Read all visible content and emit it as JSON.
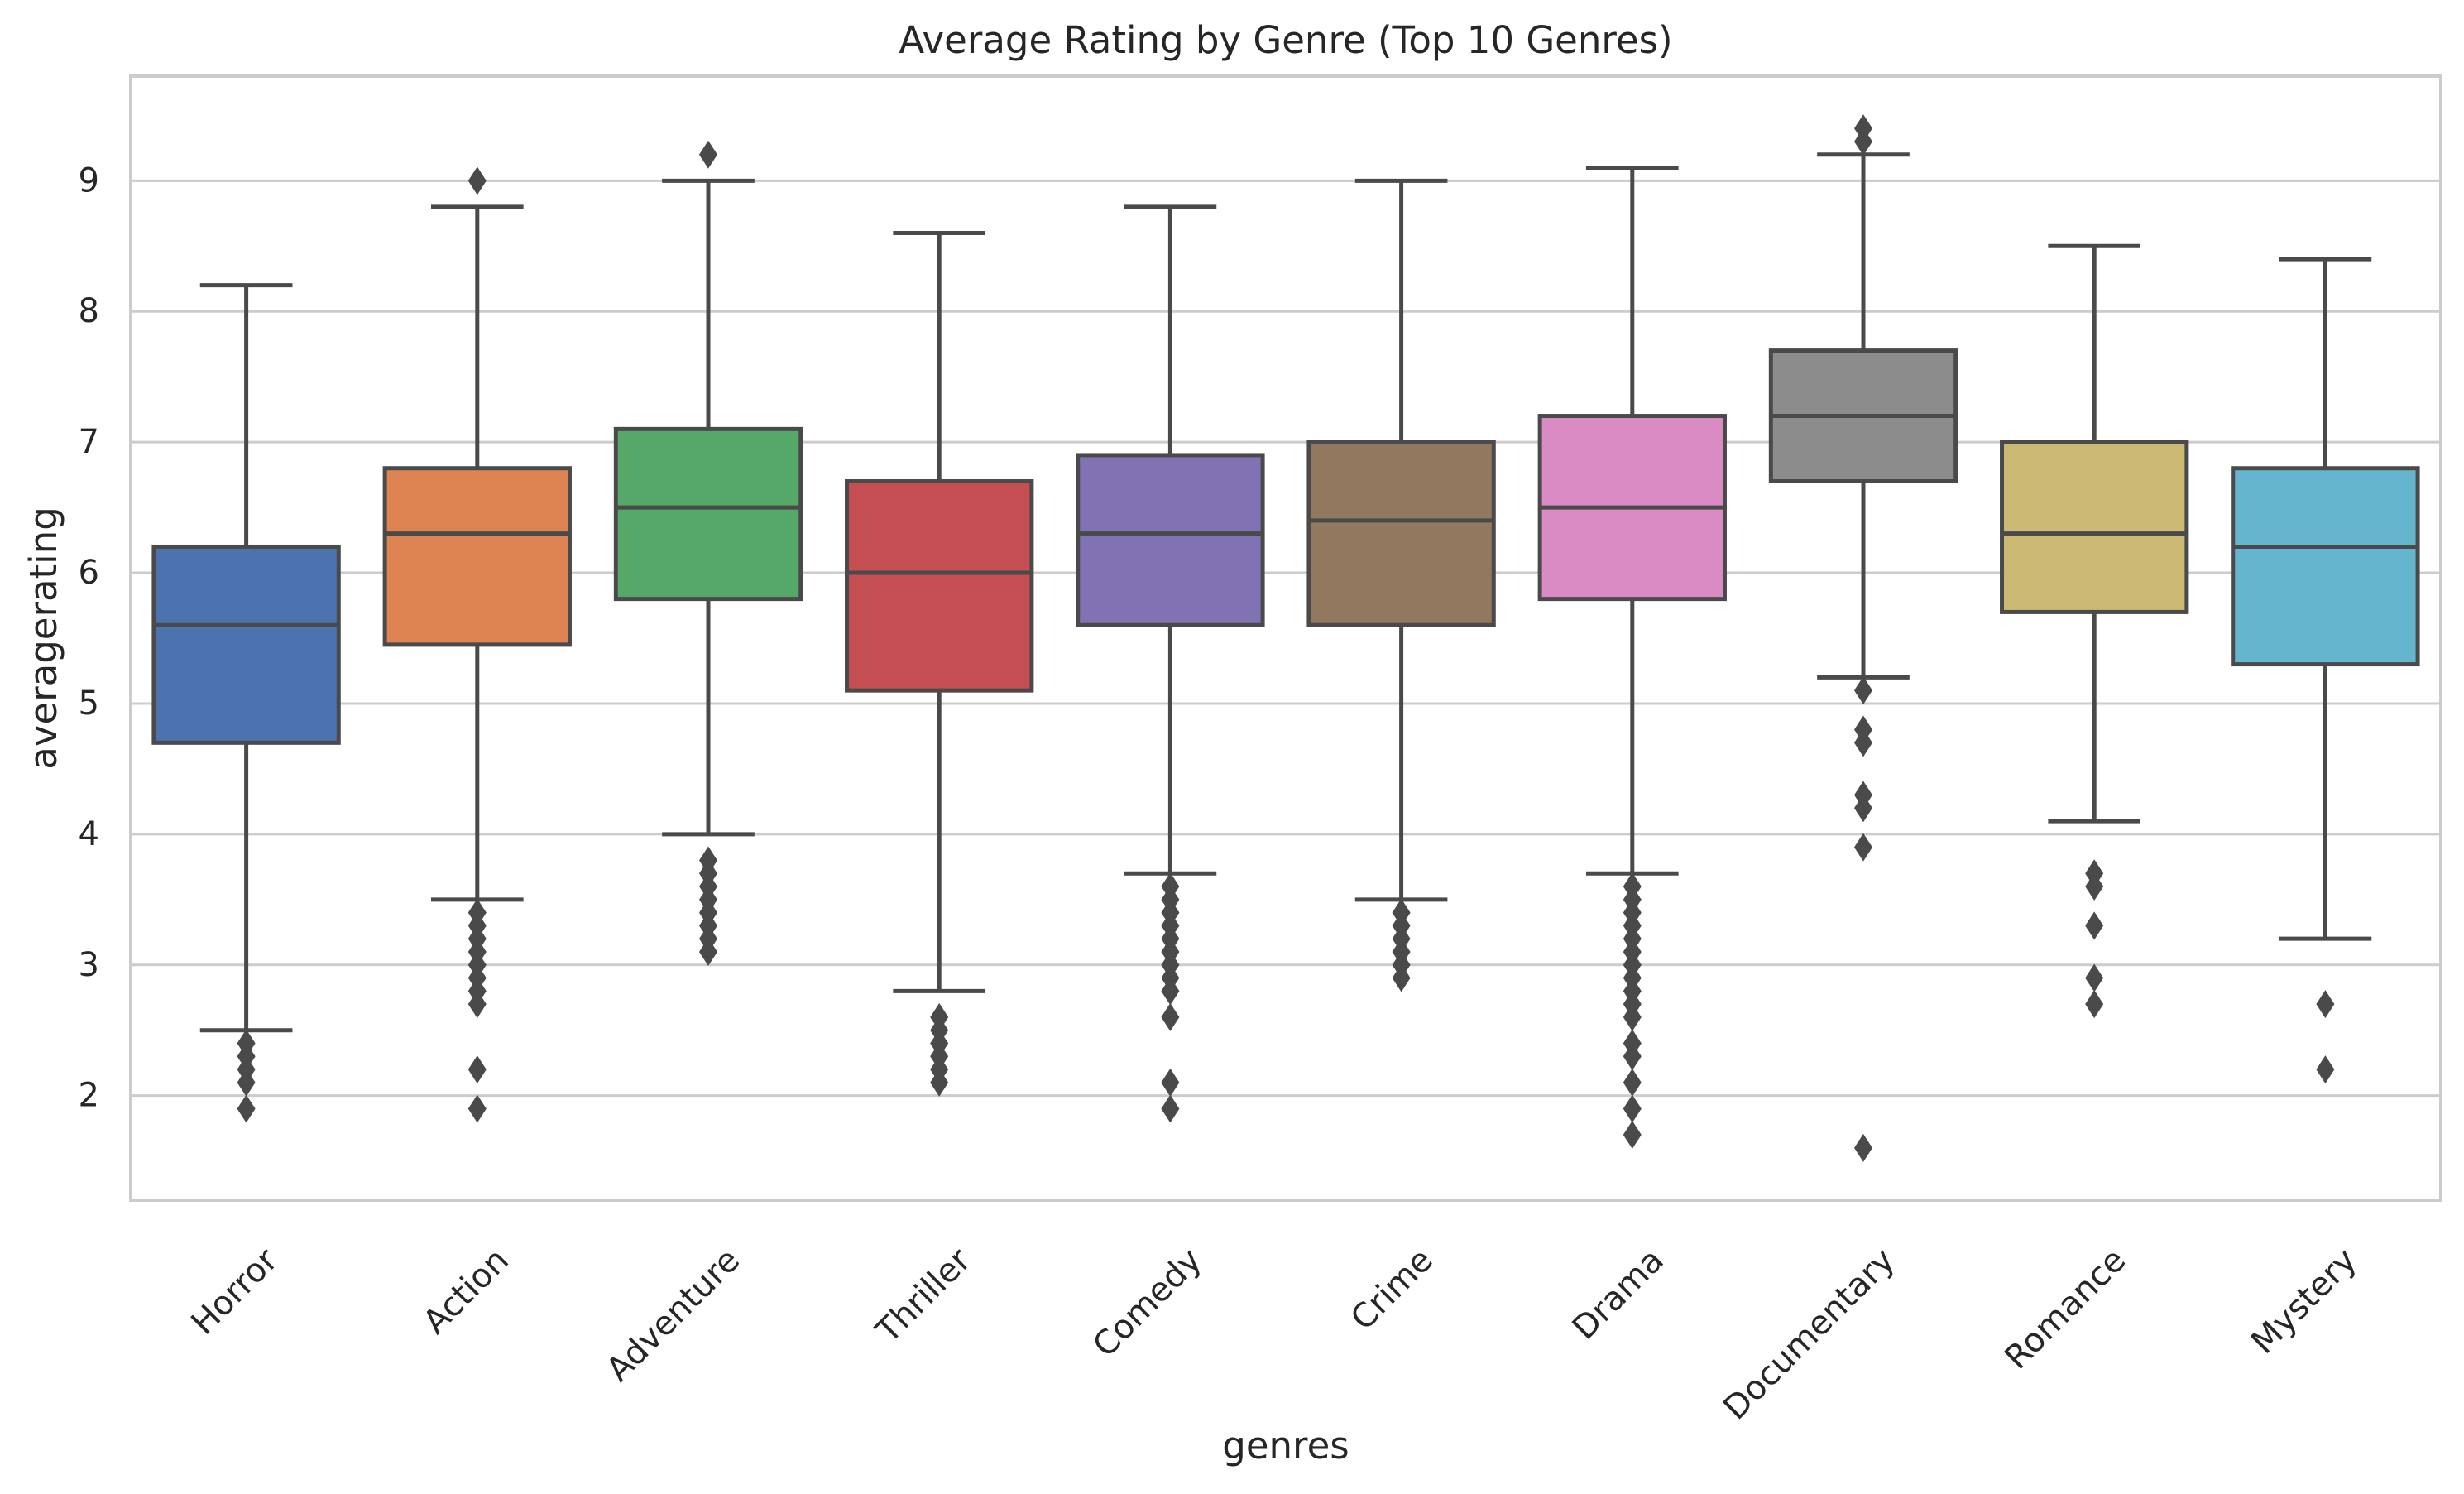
{
  "chart_data": {
    "type": "box",
    "title": "Average Rating by Genre (Top 10 Genres)",
    "xlabel": "genres",
    "ylabel": "averagerating",
    "ylim": [
      1.2,
      9.8
    ],
    "yticks": [
      2,
      3,
      4,
      5,
      6,
      7,
      8,
      9
    ],
    "grid": "horizontal",
    "edge_color": "#4a4a4a",
    "categories": [
      "Horror",
      "Action",
      "Adventure",
      "Thriller",
      "Comedy",
      "Crime",
      "Drama",
      "Documentary",
      "Romance",
      "Mystery"
    ],
    "boxes": [
      {
        "category": "Horror",
        "color": "#4c72b0",
        "whisker_low": 2.5,
        "q1": 4.7,
        "median": 5.6,
        "q3": 6.2,
        "whisker_high": 8.2,
        "outliers": [
          2.4,
          2.3,
          2.2,
          2.1,
          1.9
        ]
      },
      {
        "category": "Action",
        "color": "#dd8452",
        "whisker_low": 3.5,
        "q1": 5.45,
        "median": 6.3,
        "q3": 6.8,
        "whisker_high": 8.8,
        "outliers": [
          9.0,
          3.4,
          3.3,
          3.2,
          3.1,
          3.0,
          2.9,
          2.8,
          2.7,
          2.2,
          1.9
        ]
      },
      {
        "category": "Adventure",
        "color": "#55a868",
        "whisker_low": 4.0,
        "q1": 5.8,
        "median": 6.5,
        "q3": 7.1,
        "whisker_high": 9.0,
        "outliers": [
          9.2,
          3.8,
          3.7,
          3.6,
          3.5,
          3.4,
          3.3,
          3.2,
          3.1
        ]
      },
      {
        "category": "Thriller",
        "color": "#c44e52",
        "whisker_low": 2.8,
        "q1": 5.1,
        "median": 6.0,
        "q3": 6.7,
        "whisker_high": 8.6,
        "outliers": [
          2.6,
          2.5,
          2.4,
          2.3,
          2.2,
          2.1
        ]
      },
      {
        "category": "Comedy",
        "color": "#8172b3",
        "whisker_low": 3.7,
        "q1": 5.6,
        "median": 6.3,
        "q3": 6.9,
        "whisker_high": 8.8,
        "outliers": [
          3.6,
          3.5,
          3.4,
          3.3,
          3.2,
          3.1,
          3.0,
          2.9,
          2.8,
          2.6,
          2.1,
          1.9
        ]
      },
      {
        "category": "Crime",
        "color": "#937860",
        "whisker_low": 3.5,
        "q1": 5.6,
        "median": 6.4,
        "q3": 7.0,
        "whisker_high": 9.0,
        "outliers": [
          3.4,
          3.3,
          3.2,
          3.1,
          3.0,
          2.9
        ]
      },
      {
        "category": "Drama",
        "color": "#da8bc3",
        "whisker_low": 3.7,
        "q1": 5.8,
        "median": 6.5,
        "q3": 7.2,
        "whisker_high": 9.1,
        "outliers": [
          3.6,
          3.5,
          3.4,
          3.3,
          3.2,
          3.1,
          3.0,
          2.9,
          2.8,
          2.7,
          2.6,
          2.4,
          2.3,
          2.1,
          1.9,
          1.7
        ]
      },
      {
        "category": "Documentary",
        "color": "#8c8c8c",
        "whisker_low": 5.2,
        "q1": 6.7,
        "median": 7.2,
        "q3": 7.7,
        "whisker_high": 9.2,
        "outliers": [
          9.4,
          9.3,
          5.1,
          4.8,
          4.7,
          4.3,
          4.2,
          3.9,
          1.6
        ]
      },
      {
        "category": "Romance",
        "color": "#ccb974",
        "whisker_low": 4.1,
        "q1": 5.7,
        "median": 6.3,
        "q3": 7.0,
        "whisker_high": 8.5,
        "outliers": [
          3.7,
          3.6,
          3.3,
          2.9,
          2.7
        ]
      },
      {
        "category": "Mystery",
        "color": "#64b5cd",
        "whisker_low": 3.2,
        "q1": 5.3,
        "median": 6.2,
        "q3": 6.8,
        "whisker_high": 8.4,
        "outliers": [
          2.7,
          2.2
        ]
      }
    ]
  }
}
